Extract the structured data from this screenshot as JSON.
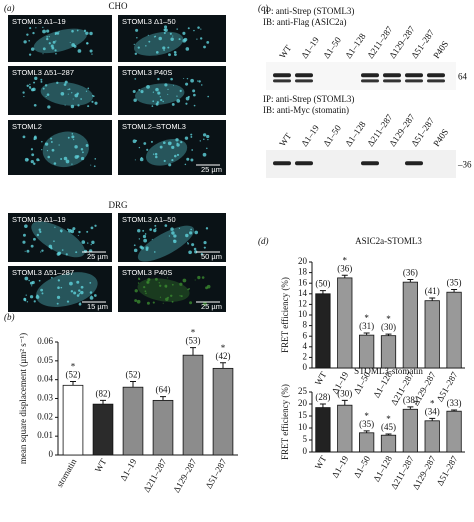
{
  "figure": {
    "panel_a": {
      "label": "(a)",
      "cho": {
        "title": "CHO",
        "images": [
          {
            "label": "STOML3 Δ1–19"
          },
          {
            "label": "STOML3 Δ1–50"
          },
          {
            "label": "STOML3 Δ51–287"
          },
          {
            "label": "STOML3 P40S"
          },
          {
            "label": "STOML2"
          },
          {
            "label": "STOML2–STOML3",
            "scale": "25 µm"
          }
        ]
      },
      "drg": {
        "title": "DRG",
        "images": [
          {
            "label": "STOML3 Δ1–19",
            "scale": "25 µm"
          },
          {
            "label": "STOML3 Δ1–50",
            "scale": "50 µm"
          },
          {
            "label": "STOML3 Δ51–287",
            "scale": "15 µm"
          },
          {
            "label": "STOML3 P40S",
            "scale": "25 µm"
          }
        ]
      }
    },
    "panel_b": {
      "label": "(b)"
    },
    "panel_c": {
      "label": "(c)",
      "blots": [
        {
          "ip": "IP: anti-Strep (STOML3)",
          "ib": "IB: anti-Flag (ASIC2a)",
          "marker": "64",
          "lanes": [
            "WT",
            "Δ1–19",
            "Δ1–50",
            "Δ1–128",
            "Δ211–287",
            "Δ129–287",
            "Δ51–287",
            "P40S"
          ]
        },
        {
          "ip": "IP: anti-Strep (STOML3)",
          "ib": "IB: anti-Myc (stomatin)",
          "marker": "–36",
          "lanes": [
            "WT",
            "Δ1–19",
            "Δ1–50",
            "Δ1–128",
            "Δ211–287",
            "Δ129–287",
            "Δ51–287",
            "P40S"
          ]
        }
      ]
    },
    "panel_d": {
      "label": "(d)"
    }
  },
  "chart_data": [
    {
      "type": "bar",
      "ylabel": "mean square displacement (µm² s⁻¹)",
      "categories": [
        "stomatin",
        "WT",
        "Δ1–19",
        "Δ211–287",
        "Δ129–287",
        "Δ51–287"
      ],
      "values": [
        0.037,
        0.027,
        0.036,
        0.029,
        0.053,
        0.046
      ],
      "errors": [
        0.002,
        0.002,
        0.003,
        0.002,
        0.004,
        0.003
      ],
      "n_labels": [
        "(52)",
        "(82)",
        "(52)",
        "(64)",
        "(53)",
        "(42)"
      ],
      "significance": [
        "*",
        null,
        null,
        null,
        "*",
        "*"
      ],
      "colors": [
        "#ffffff",
        "#2b2b2b",
        "#8c8c8c",
        "#8c8c8c",
        "#8c8c8c",
        "#8c8c8c"
      ],
      "ylim": [
        0,
        0.06
      ],
      "yticks": [
        0,
        0.01,
        0.02,
        0.03,
        0.04,
        0.05,
        0.06
      ]
    },
    {
      "type": "bar",
      "title": "ASIC2a-STOML3",
      "ylabel": "FRET efficiency (%)",
      "categories": [
        "WT",
        "Δ1–19",
        "Δ1–50",
        "Δ1–128",
        "Δ211–287",
        "Δ129–287",
        "Δ51–287"
      ],
      "values": [
        14,
        17,
        6.2,
        6.1,
        16.2,
        12.7,
        14.3
      ],
      "errors": [
        0.6,
        0.5,
        0.4,
        0.3,
        0.5,
        0.5,
        0.5
      ],
      "n_labels": [
        "(50)",
        "(36)",
        "(31)",
        "(30)",
        "(36)",
        "(41)",
        "(35)"
      ],
      "significance": [
        null,
        "*",
        "*",
        "*",
        null,
        null,
        null
      ],
      "colors": [
        "#222222",
        "#999999",
        "#999999",
        "#999999",
        "#999999",
        "#999999",
        "#999999"
      ],
      "ylim": [
        0,
        20
      ],
      "yticks": [
        0,
        2,
        4,
        6,
        8,
        10,
        12,
        14,
        16,
        18,
        20
      ]
    },
    {
      "type": "bar",
      "title": "STOML3-stomatin",
      "ylabel": "FRET efficiency (%)",
      "categories": [
        "WT",
        "Δ1–19",
        "Δ1–50",
        "Δ1–128",
        "Δ211–287",
        "Δ129–287",
        "Δ51–287"
      ],
      "values": [
        18.5,
        19.5,
        8,
        7,
        17.8,
        13,
        17
      ],
      "errors": [
        1.5,
        2,
        0.8,
        0.5,
        1,
        1,
        0.5
      ],
      "n_labels": [
        "(28)",
        "(30)",
        "(35)",
        "(45)",
        "(38)",
        "(34)",
        "(33)"
      ],
      "significance": [
        null,
        null,
        "*",
        "*",
        null,
        "*",
        null
      ],
      "colors": [
        "#222222",
        "#999999",
        "#999999",
        "#999999",
        "#999999",
        "#999999",
        "#999999"
      ],
      "ylim": [
        0,
        25
      ],
      "yticks": [
        0,
        5,
        10,
        15,
        20,
        25
      ]
    }
  ]
}
